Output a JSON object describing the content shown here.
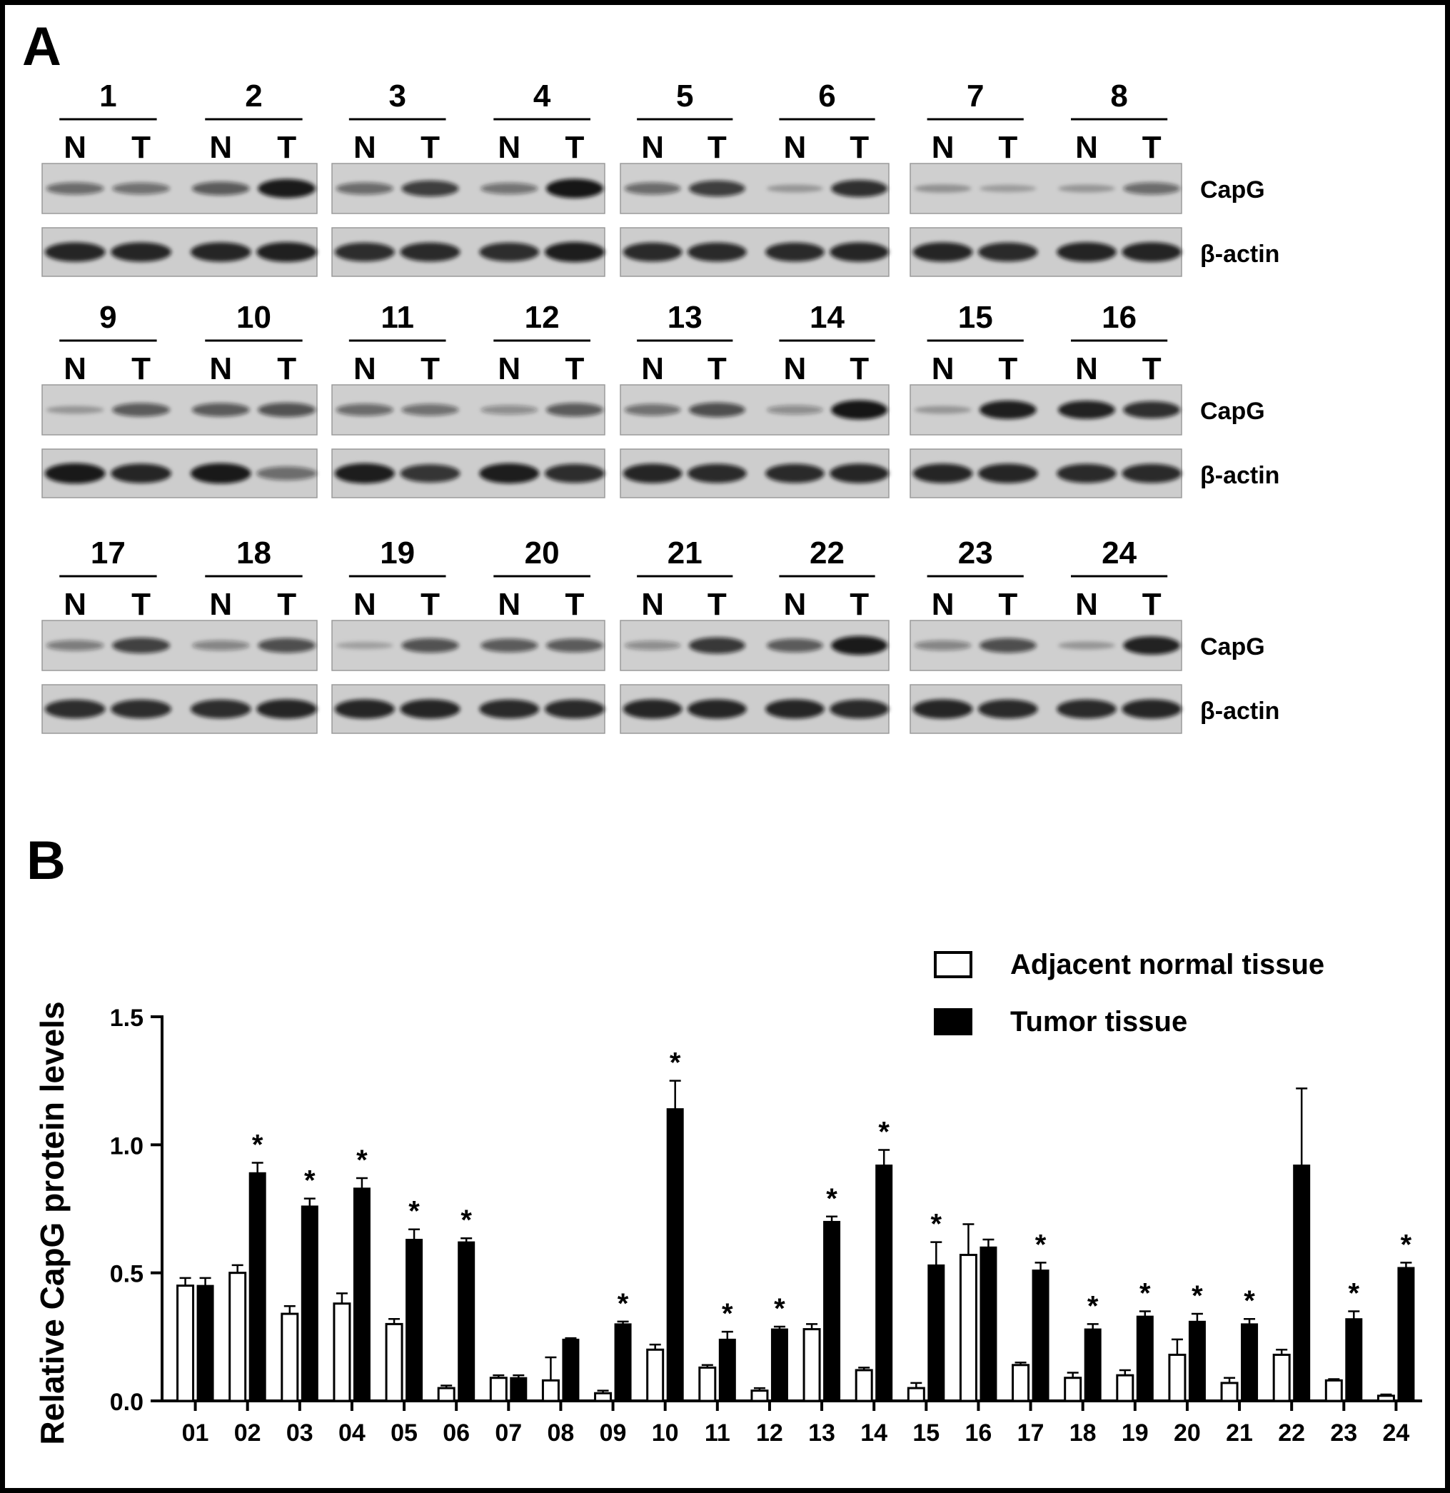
{
  "panel_a": {
    "label": "A",
    "lane_labels": {
      "normal": "N",
      "tumor": "T"
    },
    "band_labels": {
      "target": "CapG",
      "control": "β-actin"
    },
    "rows": [
      {
        "blocks": [
          {
            "samples": [
              "1",
              "2"
            ],
            "capg": [
              0.45,
              0.42,
              0.55,
              0.92
            ],
            "actin": [
              0.85,
              0.85,
              0.85,
              0.88
            ]
          },
          {
            "samples": [
              "3",
              "4"
            ],
            "capg": [
              0.45,
              0.72,
              0.4,
              0.95
            ],
            "actin": [
              0.8,
              0.82,
              0.8,
              0.9
            ]
          },
          {
            "samples": [
              "5",
              "6"
            ],
            "capg": [
              0.45,
              0.72,
              0.15,
              0.8
            ],
            "actin": [
              0.82,
              0.82,
              0.82,
              0.85
            ]
          },
          {
            "samples": [
              "7",
              "8"
            ],
            "capg": [
              0.18,
              0.12,
              0.15,
              0.45
            ],
            "actin": [
              0.85,
              0.82,
              0.86,
              0.86
            ]
          }
        ]
      },
      {
        "blocks": [
          {
            "samples": [
              "9",
              "10"
            ],
            "capg": [
              0.15,
              0.55,
              0.55,
              0.6
            ],
            "actin": [
              0.92,
              0.85,
              0.92,
              0.4
            ]
          },
          {
            "samples": [
              "11",
              "12"
            ],
            "capg": [
              0.45,
              0.42,
              0.25,
              0.55
            ],
            "actin": [
              0.9,
              0.75,
              0.9,
              0.8
            ]
          },
          {
            "samples": [
              "13",
              "14"
            ],
            "capg": [
              0.42,
              0.62,
              0.25,
              0.95
            ],
            "actin": [
              0.85,
              0.82,
              0.82,
              0.85
            ]
          },
          {
            "samples": [
              "15",
              "16"
            ],
            "capg": [
              0.15,
              0.9,
              0.88,
              0.8
            ],
            "actin": [
              0.85,
              0.85,
              0.82,
              0.82
            ]
          }
        ]
      },
      {
        "blocks": [
          {
            "samples": [
              "17",
              "18"
            ],
            "capg": [
              0.35,
              0.7,
              0.3,
              0.62
            ],
            "actin": [
              0.8,
              0.8,
              0.8,
              0.85
            ]
          },
          {
            "samples": [
              "19",
              "20"
            ],
            "capg": [
              0.1,
              0.6,
              0.55,
              0.55
            ],
            "actin": [
              0.85,
              0.85,
              0.82,
              0.82
            ]
          },
          {
            "samples": [
              "21",
              "22"
            ],
            "capg": [
              0.25,
              0.75,
              0.55,
              0.92
            ],
            "actin": [
              0.85,
              0.85,
              0.85,
              0.82
            ]
          },
          {
            "samples": [
              "23",
              "24"
            ],
            "capg": [
              0.3,
              0.62,
              0.15,
              0.88
            ],
            "actin": [
              0.85,
              0.82,
              0.82,
              0.85
            ]
          }
        ]
      }
    ]
  },
  "chart_data": {
    "panel_label": "B",
    "type": "bar",
    "ylabel": "Relative CapG protein levels",
    "xlabel": "",
    "ylim": [
      0,
      1.5
    ],
    "yticks": [
      "0.0",
      "0.5",
      "1.0",
      "1.5"
    ],
    "categories": [
      "01",
      "02",
      "03",
      "04",
      "05",
      "06",
      "07",
      "08",
      "09",
      "10",
      "11",
      "12",
      "13",
      "14",
      "15",
      "16",
      "17",
      "18",
      "19",
      "20",
      "21",
      "22",
      "23",
      "24"
    ],
    "legend_position": "top-right",
    "series": [
      {
        "name": "Adjacent normal tissue",
        "style": "open",
        "values": [
          0.45,
          0.5,
          0.34,
          0.38,
          0.3,
          0.05,
          0.09,
          0.08,
          0.03,
          0.2,
          0.13,
          0.04,
          0.28,
          0.12,
          0.05,
          0.57,
          0.14,
          0.09,
          0.1,
          0.18,
          0.07,
          0.18,
          0.08,
          0.02
        ],
        "errors": [
          0.03,
          0.03,
          0.03,
          0.04,
          0.02,
          0.01,
          0.01,
          0.09,
          0.01,
          0.02,
          0.01,
          0.01,
          0.02,
          0.01,
          0.02,
          0.12,
          0.01,
          0.02,
          0.02,
          0.06,
          0.02,
          0.02,
          0.005,
          0.005
        ]
      },
      {
        "name": "Tumor tissue",
        "style": "filled",
        "values": [
          0.45,
          0.89,
          0.76,
          0.83,
          0.63,
          0.62,
          0.09,
          0.24,
          0.3,
          1.14,
          0.24,
          0.28,
          0.7,
          0.92,
          0.53,
          0.6,
          0.51,
          0.28,
          0.33,
          0.31,
          0.3,
          0.92,
          0.32,
          0.52
        ],
        "errors": [
          0.03,
          0.04,
          0.03,
          0.04,
          0.04,
          0.015,
          0.01,
          0.005,
          0.01,
          0.11,
          0.03,
          0.01,
          0.02,
          0.06,
          0.09,
          0.03,
          0.03,
          0.02,
          0.02,
          0.03,
          0.02,
          0.3,
          0.03,
          0.02
        ]
      }
    ],
    "significance_marker": "*",
    "significant": [
      false,
      true,
      true,
      true,
      true,
      true,
      false,
      false,
      true,
      true,
      true,
      true,
      true,
      true,
      true,
      false,
      true,
      true,
      true,
      true,
      true,
      false,
      true,
      true
    ]
  }
}
